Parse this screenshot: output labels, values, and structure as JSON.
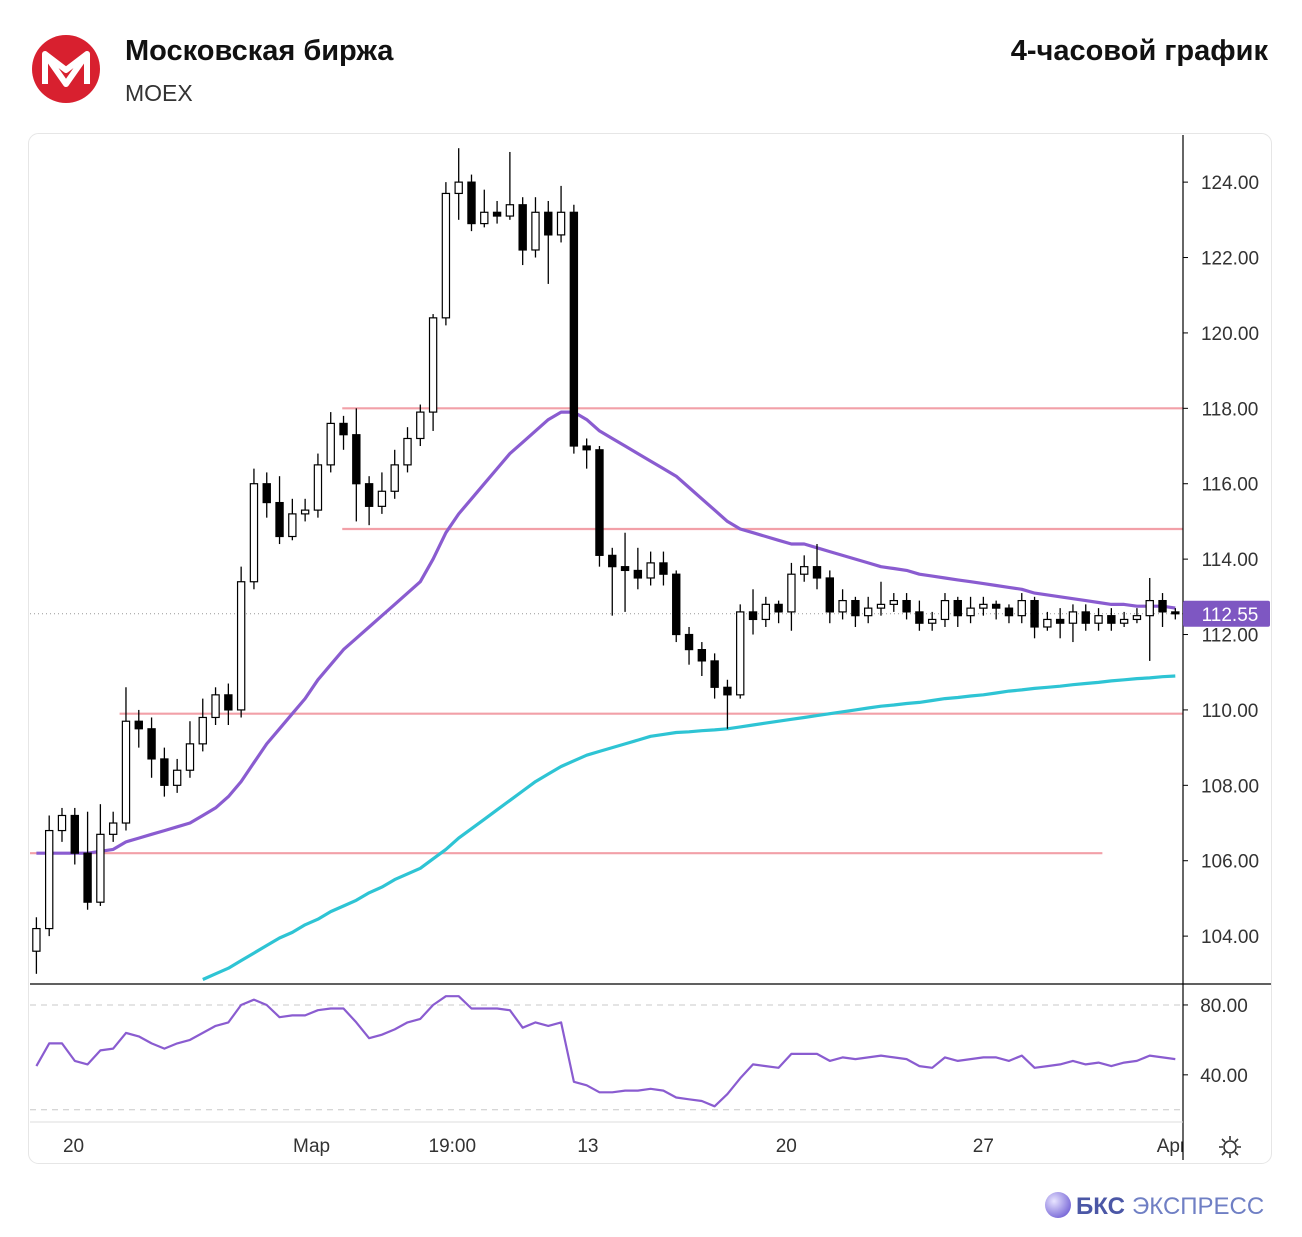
{
  "header": {
    "title": "Московская биржа",
    "ticker": "MOEX",
    "timeframe": "4-часовой график"
  },
  "chart_data": {
    "type": "candlestick",
    "xlim": [
      -0.5,
      89.6
    ],
    "xticks": [
      {
        "value": 2.9,
        "label": "20"
      },
      {
        "value": 21.5,
        "label": "Мар"
      },
      {
        "value": 32.5,
        "label": "19:00"
      },
      {
        "value": 43.1,
        "label": "13"
      },
      {
        "value": 58.6,
        "label": "20"
      },
      {
        "value": 74.0,
        "label": "27"
      },
      {
        "value": 88.7,
        "label": "Apr"
      }
    ],
    "ylim": [
      102.73,
      125.25
    ],
    "yticks": [
      {
        "value": 104,
        "label": "104.00"
      },
      {
        "value": 106,
        "label": "106.00"
      },
      {
        "value": 108,
        "label": "108.00"
      },
      {
        "value": 110,
        "label": "110.00"
      },
      {
        "value": 112,
        "label": "112.00"
      },
      {
        "value": 114,
        "label": "114.00"
      },
      {
        "value": 116,
        "label": "116.00"
      },
      {
        "value": 118,
        "label": "118.00"
      },
      {
        "value": 120,
        "label": "120.00"
      },
      {
        "value": 122,
        "label": "122.00"
      },
      {
        "value": 124,
        "label": "124.00"
      }
    ],
    "open": [
      103.6,
      104.2,
      106.8,
      107.2,
      106.2,
      104.9,
      106.7,
      107.0,
      109.7,
      109.5,
      108.7,
      108.0,
      108.4,
      109.1,
      109.8,
      110.4,
      110.0,
      113.4,
      116.0,
      115.5,
      114.6,
      115.2,
      115.3,
      116.5,
      117.6,
      117.3,
      116.0,
      115.4,
      115.8,
      116.5,
      117.2,
      117.9,
      120.4,
      123.7,
      124.0,
      122.9,
      123.2,
      123.1,
      123.4,
      122.2,
      123.2,
      122.6,
      123.2,
      117.0,
      116.9,
      114.1,
      113.8,
      113.7,
      113.5,
      113.9,
      113.6,
      112.0,
      111.6,
      111.3,
      110.6,
      110.4,
      112.6,
      112.4,
      112.8,
      112.6,
      113.6,
      113.8,
      113.5,
      112.6,
      112.9,
      112.5,
      112.7,
      112.8,
      112.9,
      112.6,
      112.3,
      112.4,
      112.9,
      112.5,
      112.7,
      112.8,
      112.7,
      112.5,
      112.9,
      112.2,
      112.4,
      112.3,
      112.6,
      112.3,
      112.5,
      112.3,
      112.4,
      112.5,
      112.9,
      112.6
    ],
    "high": [
      104.5,
      107.2,
      107.4,
      107.4,
      107.3,
      107.5,
      107.3,
      110.6,
      110.0,
      109.8,
      109.0,
      108.7,
      109.7,
      110.3,
      110.6,
      110.7,
      113.8,
      116.4,
      116.3,
      116.2,
      115.6,
      115.6,
      116.8,
      117.9,
      117.8,
      118.0,
      116.2,
      116.3,
      116.9,
      117.5,
      118.1,
      120.5,
      124.0,
      124.9,
      124.2,
      123.8,
      123.5,
      124.8,
      123.6,
      123.6,
      123.5,
      123.9,
      123.4,
      117.2,
      117.0,
      114.3,
      114.7,
      114.3,
      114.2,
      114.2,
      113.7,
      112.2,
      111.8,
      111.5,
      110.8,
      112.8,
      113.2,
      113.0,
      112.9,
      113.9,
      114.1,
      114.4,
      113.7,
      113.2,
      113.0,
      113.0,
      113.4,
      113.1,
      113.1,
      112.9,
      112.6,
      113.1,
      113.0,
      113.0,
      113.0,
      112.9,
      112.8,
      113.1,
      113.0,
      112.6,
      112.7,
      112.8,
      112.8,
      112.7,
      112.7,
      112.6,
      112.7,
      113.5,
      113.1,
      112.7
    ],
    "low": [
      103.0,
      104.0,
      106.5,
      105.9,
      104.7,
      104.8,
      106.5,
      106.8,
      109.0,
      108.2,
      107.7,
      107.8,
      108.2,
      108.9,
      109.6,
      109.6,
      109.8,
      113.2,
      115.1,
      114.4,
      114.5,
      115.0,
      115.1,
      116.3,
      116.9,
      115.0,
      114.9,
      115.2,
      115.6,
      116.3,
      117.0,
      117.4,
      120.2,
      123.0,
      122.7,
      122.8,
      122.9,
      123.0,
      121.8,
      122.0,
      121.3,
      122.4,
      116.8,
      116.4,
      113.8,
      112.5,
      112.6,
      113.2,
      113.3,
      113.3,
      111.8,
      111.2,
      110.9,
      110.3,
      109.5,
      110.3,
      112.0,
      112.2,
      112.3,
      112.1,
      113.4,
      113.2,
      112.3,
      112.4,
      112.2,
      112.3,
      112.5,
      112.6,
      112.4,
      112.1,
      112.1,
      112.2,
      112.2,
      112.3,
      112.5,
      112.4,
      112.3,
      112.3,
      111.9,
      112.1,
      111.9,
      111.8,
      112.1,
      112.1,
      112.1,
      112.2,
      112.3,
      111.3,
      112.2,
      112.4
    ],
    "close": [
      104.2,
      106.8,
      107.2,
      106.2,
      104.9,
      106.7,
      107.0,
      109.7,
      109.5,
      108.7,
      108.0,
      108.4,
      109.1,
      109.8,
      110.4,
      110.0,
      113.4,
      116.0,
      115.5,
      114.6,
      115.2,
      115.3,
      116.5,
      117.6,
      117.3,
      116.0,
      115.4,
      115.8,
      116.5,
      117.2,
      117.9,
      120.4,
      123.7,
      124.0,
      122.9,
      123.2,
      123.1,
      123.4,
      122.2,
      123.2,
      122.6,
      123.2,
      117.0,
      116.9,
      114.1,
      113.8,
      113.7,
      113.5,
      113.9,
      113.6,
      112.0,
      111.6,
      111.3,
      110.6,
      110.4,
      112.6,
      112.4,
      112.8,
      112.6,
      113.6,
      113.8,
      113.5,
      112.6,
      112.9,
      112.5,
      112.7,
      112.8,
      112.9,
      112.6,
      112.3,
      112.4,
      112.9,
      112.5,
      112.7,
      112.8,
      112.7,
      112.5,
      112.9,
      112.2,
      112.4,
      112.3,
      112.6,
      112.3,
      112.5,
      112.3,
      112.4,
      112.5,
      112.9,
      112.6,
      112.55
    ],
    "up_color": "#ffffff",
    "down_color": "#000000",
    "series": [
      {
        "color": "#8a5cd0",
        "values": [
          106.2,
          106.2,
          106.2,
          106.2,
          106.2,
          106.25,
          106.3,
          106.5,
          106.6,
          106.7,
          106.8,
          106.9,
          107.0,
          107.2,
          107.4,
          107.7,
          108.1,
          108.6,
          109.1,
          109.5,
          109.9,
          110.3,
          110.8,
          111.2,
          111.6,
          111.9,
          112.2,
          112.5,
          112.8,
          113.1,
          113.4,
          114.0,
          114.7,
          115.2,
          115.6,
          116.0,
          116.4,
          116.8,
          117.1,
          117.4,
          117.7,
          117.9,
          117.9,
          117.7,
          117.4,
          117.2,
          117.0,
          116.8,
          116.6,
          116.4,
          116.2,
          115.9,
          115.6,
          115.3,
          115.0,
          114.8,
          114.7,
          114.6,
          114.5,
          114.4,
          114.4,
          114.3,
          114.2,
          114.1,
          114.0,
          113.9,
          113.8,
          113.75,
          113.7,
          113.6,
          113.55,
          113.5,
          113.45,
          113.4,
          113.35,
          113.3,
          113.25,
          113.2,
          113.1,
          113.05,
          113.0,
          112.95,
          112.9,
          112.85,
          112.8,
          112.8,
          112.75,
          112.75,
          112.75,
          112.7
        ]
      },
      {
        "color": "#2ec4d4",
        "values": [
          null,
          null,
          null,
          null,
          null,
          null,
          null,
          null,
          null,
          null,
          null,
          null,
          null,
          102.85,
          103.0,
          103.15,
          103.35,
          103.55,
          103.75,
          103.95,
          104.1,
          104.3,
          104.45,
          104.65,
          104.8,
          104.95,
          105.15,
          105.3,
          105.5,
          105.65,
          105.8,
          106.05,
          106.3,
          106.6,
          106.85,
          107.1,
          107.35,
          107.6,
          107.85,
          108.1,
          108.3,
          108.5,
          108.65,
          108.8,
          108.9,
          109.0,
          109.1,
          109.2,
          109.3,
          109.35,
          109.4,
          109.42,
          109.45,
          109.47,
          109.5,
          109.55,
          109.6,
          109.65,
          109.7,
          109.75,
          109.8,
          109.85,
          109.9,
          109.95,
          110.0,
          110.05,
          110.1,
          110.13,
          110.17,
          110.2,
          110.25,
          110.3,
          110.33,
          110.37,
          110.4,
          110.45,
          110.5,
          110.53,
          110.57,
          110.6,
          110.63,
          110.67,
          110.7,
          110.73,
          110.77,
          110.8,
          110.83,
          110.85,
          110.88,
          110.9
        ]
      }
    ],
    "levels": [
      {
        "value": 118.0,
        "x": [
          23.9,
          89.6
        ]
      },
      {
        "value": 114.8,
        "x": [
          23.9,
          89.6
        ]
      },
      {
        "value": 109.9,
        "x": [
          6.5,
          89.6
        ]
      },
      {
        "value": 106.2,
        "x": [
          -0.5,
          83.3
        ]
      }
    ],
    "level_color": "#f2a0a8",
    "last_price": 112.55,
    "last_price_color": "#7e57c2",
    "oscillator": {
      "type": "line",
      "color": "#8a5cd0",
      "ylim": [
        13,
        92
      ],
      "yticks": [
        {
          "value": 80,
          "label": "80.00"
        },
        {
          "value": 40,
          "label": "40.00"
        }
      ],
      "bands": [
        80,
        20
      ],
      "values": [
        45,
        58,
        58,
        48,
        46,
        54,
        55,
        64,
        62,
        58,
        55,
        58,
        60,
        64,
        68,
        70,
        80,
        83,
        80,
        73,
        74,
        74,
        77,
        78,
        78,
        70,
        61,
        63,
        66,
        70,
        72,
        80,
        85,
        85,
        78,
        78,
        78,
        77,
        67,
        70,
        68,
        70,
        36,
        34,
        30,
        30,
        31,
        31,
        32,
        31,
        27,
        26,
        25,
        22,
        29,
        38,
        46,
        45,
        44,
        52,
        52,
        52,
        48,
        50,
        49,
        50,
        51,
        50,
        49,
        45,
        44,
        50,
        48,
        49,
        50,
        50,
        48,
        51,
        44,
        45,
        46,
        48,
        46,
        47,
        45,
        47,
        48,
        51,
        50,
        49
      ]
    }
  },
  "footer": {
    "brand": [
      "БКС",
      "ЭКСПРЕСС"
    ]
  }
}
